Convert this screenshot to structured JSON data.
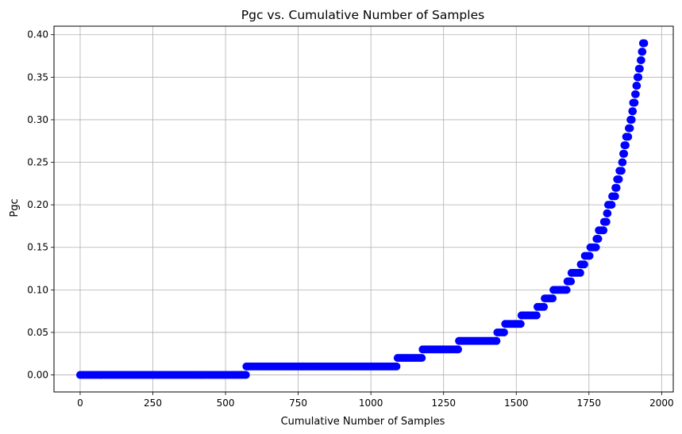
{
  "chart_data": {
    "type": "scatter",
    "title": "Pgc vs. Cumulative Number of Samples",
    "xlabel": "Cumulative Number of Samples",
    "ylabel": "Pgc",
    "xlim": [
      -90,
      2040
    ],
    "ylim": [
      -0.02,
      0.41
    ],
    "xticks": [
      0,
      250,
      500,
      750,
      1000,
      1250,
      1500,
      1750,
      2000
    ],
    "xtick_labels": [
      "0",
      "250",
      "500",
      "750",
      "1000",
      "1250",
      "1500",
      "1750",
      "2000"
    ],
    "yticks": [
      0.0,
      0.05,
      0.1,
      0.15,
      0.2,
      0.25,
      0.3,
      0.35,
      0.4
    ],
    "ytick_labels": [
      "0.00",
      "0.05",
      "0.10",
      "0.15",
      "0.20",
      "0.25",
      "0.30",
      "0.35",
      "0.40"
    ],
    "grid": true,
    "marker_color": "#0000ff",
    "steps": [
      {
        "x_start": 0,
        "x_end": 570,
        "y": 0.0
      },
      {
        "x_start": 572,
        "x_end": 1088,
        "y": 0.01
      },
      {
        "x_start": 1092,
        "x_end": 1175,
        "y": 0.02
      },
      {
        "x_start": 1178,
        "x_end": 1300,
        "y": 0.03
      },
      {
        "x_start": 1303,
        "x_end": 1432,
        "y": 0.04
      },
      {
        "x_start": 1435,
        "x_end": 1458,
        "y": 0.05
      },
      {
        "x_start": 1462,
        "x_end": 1515,
        "y": 0.06
      },
      {
        "x_start": 1518,
        "x_end": 1570,
        "y": 0.07
      },
      {
        "x_start": 1573,
        "x_end": 1595,
        "y": 0.08
      },
      {
        "x_start": 1598,
        "x_end": 1625,
        "y": 0.09
      },
      {
        "x_start": 1628,
        "x_end": 1673,
        "y": 0.1
      },
      {
        "x_start": 1676,
        "x_end": 1688,
        "y": 0.11
      },
      {
        "x_start": 1690,
        "x_end": 1720,
        "y": 0.12
      },
      {
        "x_start": 1722,
        "x_end": 1734,
        "y": 0.13
      },
      {
        "x_start": 1736,
        "x_end": 1752,
        "y": 0.14
      },
      {
        "x_start": 1755,
        "x_end": 1774,
        "y": 0.15
      },
      {
        "x_start": 1776,
        "x_end": 1782,
        "y": 0.16
      },
      {
        "x_start": 1784,
        "x_end": 1800,
        "y": 0.17
      },
      {
        "x_start": 1802,
        "x_end": 1810,
        "y": 0.18
      },
      {
        "x_start": 1812,
        "x_end": 1814,
        "y": 0.19
      },
      {
        "x_start": 1816,
        "x_end": 1828,
        "y": 0.2
      },
      {
        "x_start": 1830,
        "x_end": 1840,
        "y": 0.21
      },
      {
        "x_start": 1841,
        "x_end": 1845,
        "y": 0.22
      },
      {
        "x_start": 1847,
        "x_end": 1853,
        "y": 0.23
      },
      {
        "x_start": 1855,
        "x_end": 1862,
        "y": 0.24
      },
      {
        "x_start": 1864,
        "x_end": 1866,
        "y": 0.25
      },
      {
        "x_start": 1868,
        "x_end": 1871,
        "y": 0.26
      },
      {
        "x_start": 1872,
        "x_end": 1876,
        "y": 0.27
      },
      {
        "x_start": 1878,
        "x_end": 1885,
        "y": 0.28
      },
      {
        "x_start": 1887,
        "x_end": 1891,
        "y": 0.29
      },
      {
        "x_start": 1893,
        "x_end": 1897,
        "y": 0.3
      },
      {
        "x_start": 1899,
        "x_end": 1901,
        "y": 0.31
      },
      {
        "x_start": 1902,
        "x_end": 1907,
        "y": 0.32
      },
      {
        "x_start": 1909,
        "x_end": 1911,
        "y": 0.33
      },
      {
        "x_start": 1913,
        "x_end": 1915,
        "y": 0.34
      },
      {
        "x_start": 1917,
        "x_end": 1920,
        "y": 0.35
      },
      {
        "x_start": 1922,
        "x_end": 1925,
        "y": 0.36
      },
      {
        "x_start": 1928,
        "x_end": 1930,
        "y": 0.37
      },
      {
        "x_start": 1932,
        "x_end": 1934,
        "y": 0.38
      },
      {
        "x_start": 1936,
        "x_end": 1940,
        "y": 0.39
      }
    ]
  }
}
